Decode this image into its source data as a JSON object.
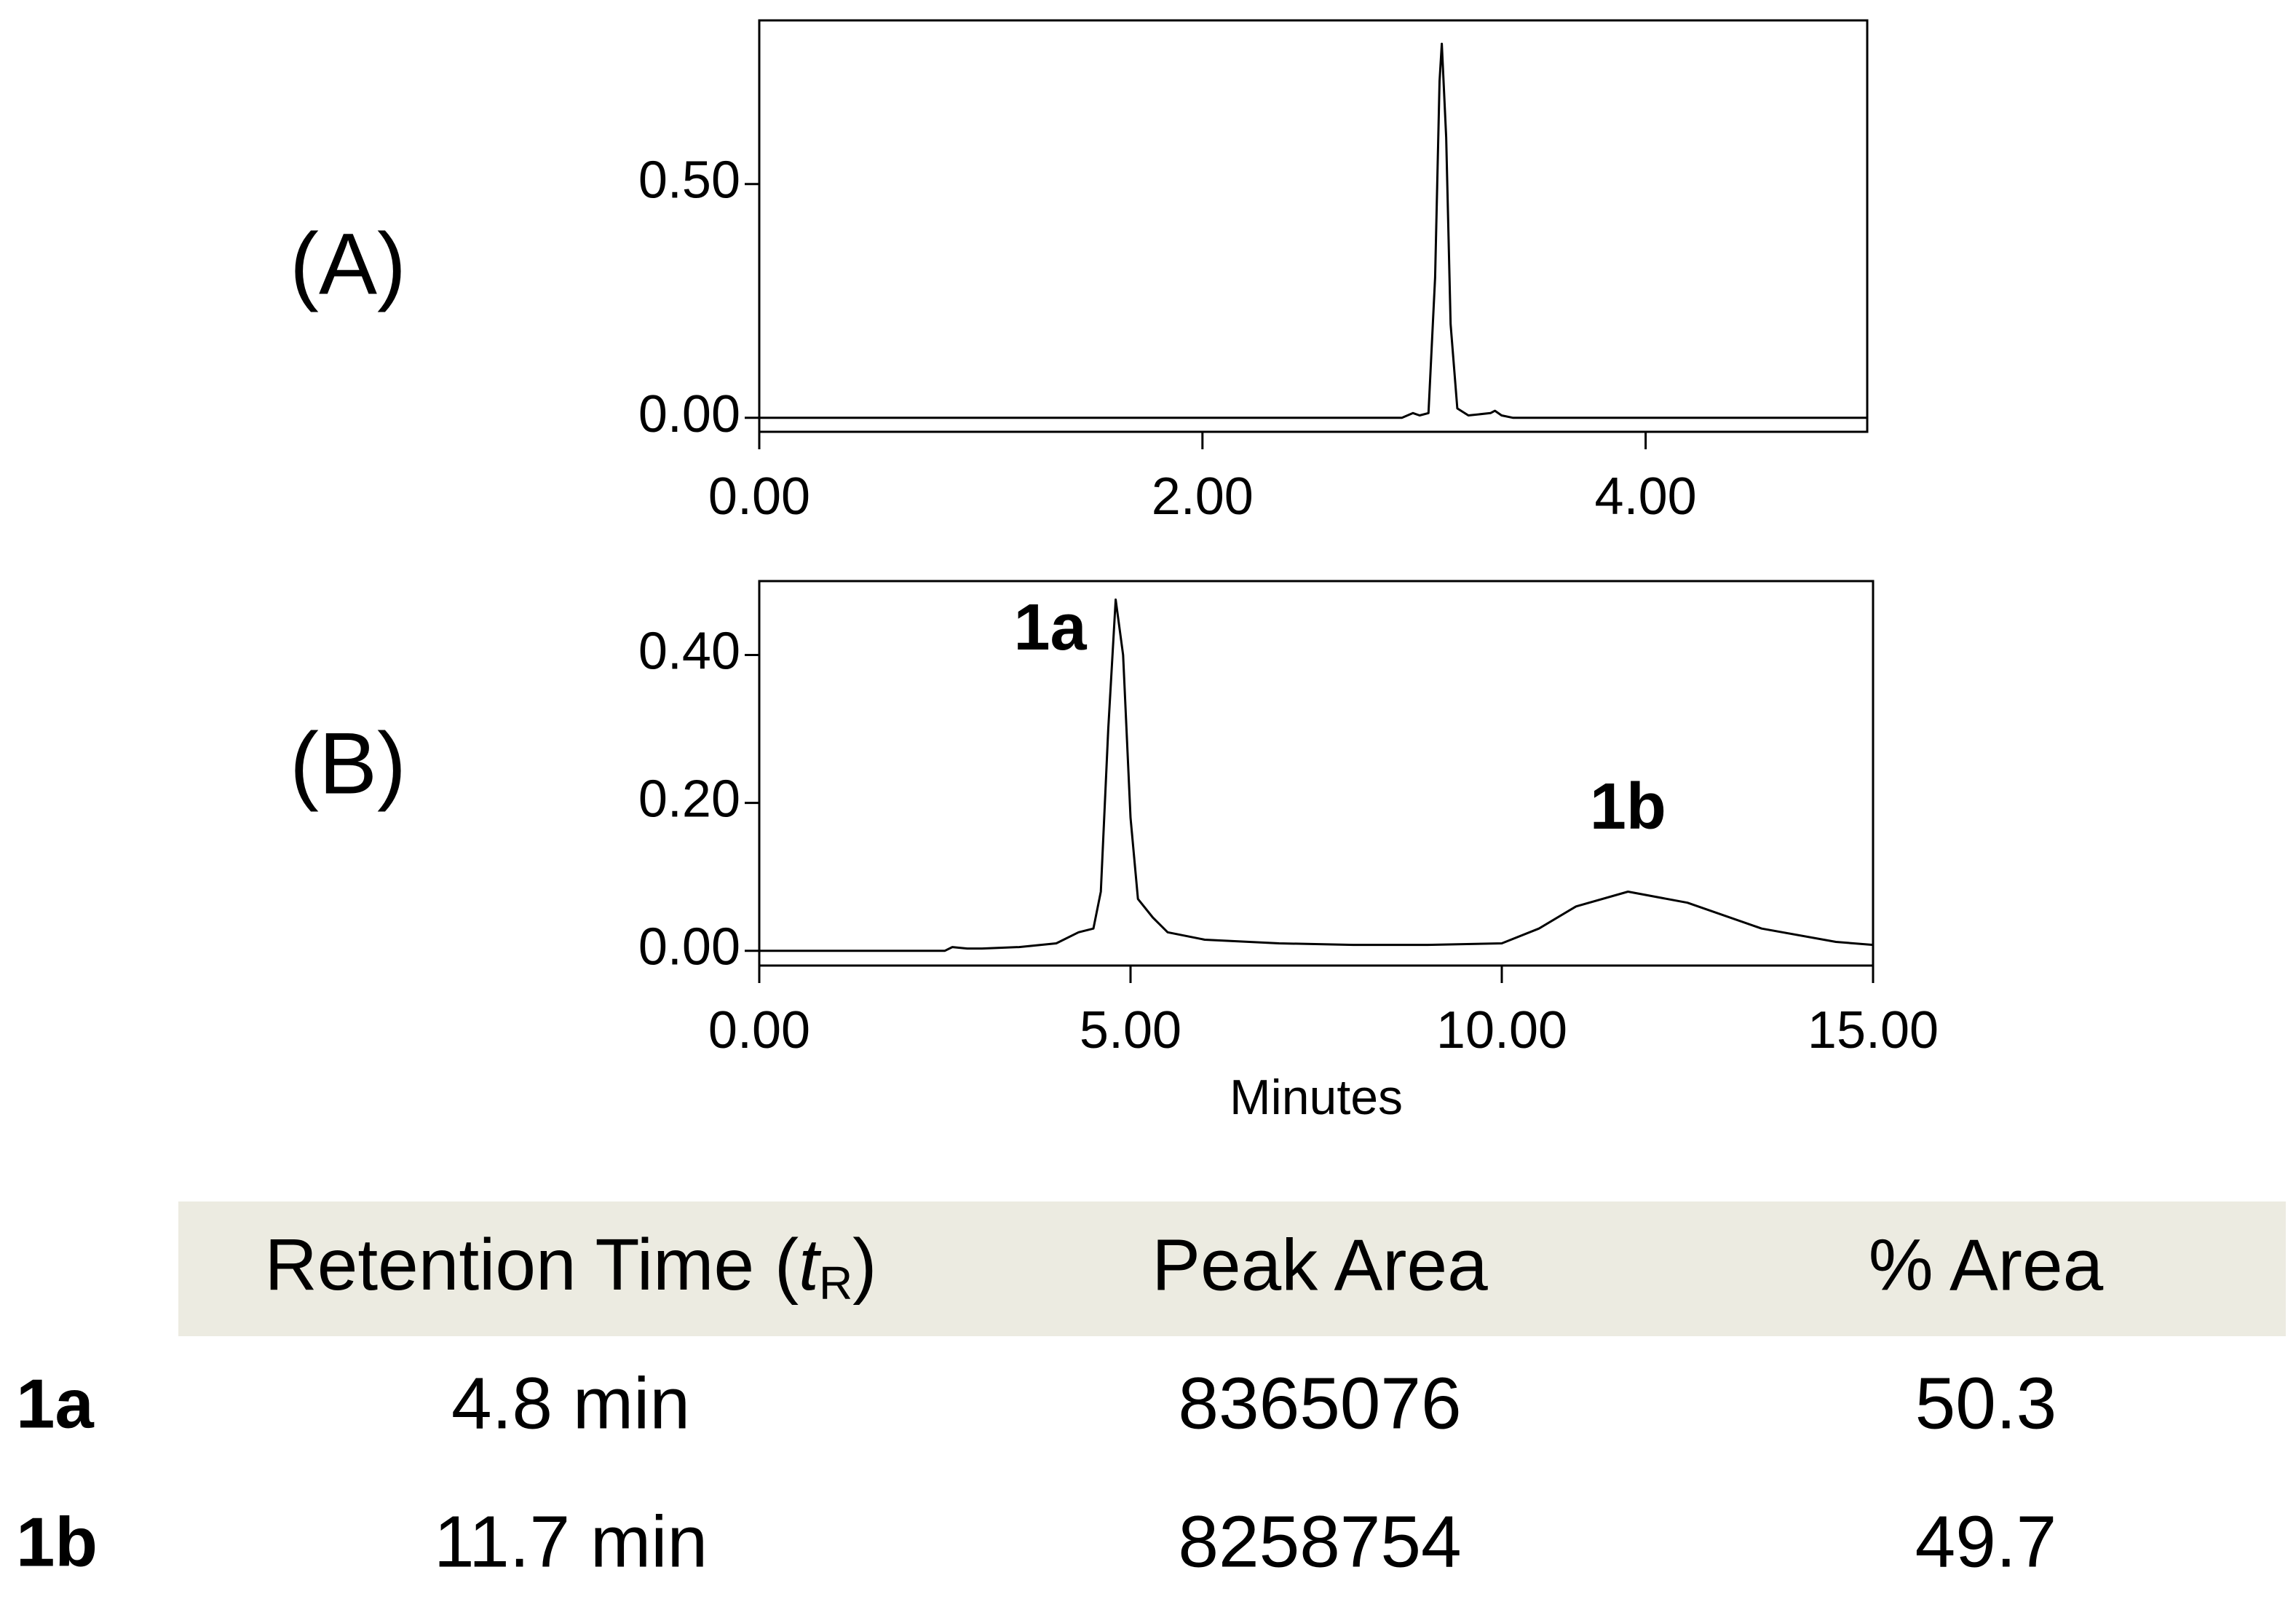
{
  "chart_data": [
    {
      "type": "line",
      "panel_label": "(A)",
      "x": [
        0,
        2.9,
        2.95,
        2.98,
        3.02,
        3.05,
        3.07,
        3.08,
        3.1,
        3.12,
        3.15,
        3.2,
        3.3,
        3.32,
        3.35,
        3.4,
        5
      ],
      "values": [
        0,
        0,
        0.01,
        0.005,
        0.01,
        0.3,
        0.72,
        0.8,
        0.6,
        0.2,
        0.02,
        0.005,
        0.01,
        0.015,
        0.005,
        0,
        0
      ],
      "color": "#000000",
      "xlim": [
        0,
        5
      ],
      "ylim": [
        -0.03,
        0.85
      ],
      "xticks": [
        {
          "value": 0,
          "label": "0.00"
        },
        {
          "value": 2,
          "label": "2.00"
        },
        {
          "value": 4,
          "label": "4.00"
        }
      ],
      "yticks": [
        {
          "value": 0,
          "label": "0.00"
        },
        {
          "value": 0.5,
          "label": "0.50"
        }
      ]
    },
    {
      "type": "line",
      "panel_label": "(B)",
      "xlabel": "Minutes",
      "x": [
        0,
        2.5,
        2.6,
        2.8,
        3,
        3.5,
        4,
        4.3,
        4.5,
        4.6,
        4.7,
        4.8,
        4.9,
        5.0,
        5.1,
        5.3,
        5.5,
        6,
        7,
        8,
        9,
        10,
        10.5,
        11,
        11.7,
        12.5,
        13.5,
        14.5,
        15
      ],
      "values": [
        0,
        0,
        0.005,
        0.003,
        0.003,
        0.005,
        0.01,
        0.025,
        0.03,
        0.08,
        0.3,
        0.475,
        0.4,
        0.18,
        0.07,
        0.045,
        0.025,
        0.015,
        0.01,
        0.008,
        0.008,
        0.01,
        0.03,
        0.06,
        0.08,
        0.065,
        0.03,
        0.012,
        0.008
      ],
      "color": "#000000",
      "xlim": [
        0,
        15
      ],
      "ylim": [
        -0.02,
        0.5
      ],
      "xticks": [
        {
          "value": 0,
          "label": "0.00"
        },
        {
          "value": 5,
          "label": "5.00"
        },
        {
          "value": 10,
          "label": "10.00"
        },
        {
          "value": 15,
          "label": "15.00"
        }
      ],
      "yticks": [
        {
          "value": 0,
          "label": "0.00"
        },
        {
          "value": 0.2,
          "label": "0.20"
        },
        {
          "value": 0.4,
          "label": "0.40"
        }
      ],
      "annotations": [
        {
          "text": "1a",
          "x": 4.8,
          "y": 0.475
        },
        {
          "text": "1b",
          "x": 11.7,
          "y": 0.08
        }
      ]
    }
  ],
  "table": {
    "header": [
      [
        "Retention Time (",
        "t",
        "R",
        ")"
      ],
      "Peak Area",
      "% Area"
    ],
    "rows": [
      [
        "1a",
        "4.8 min",
        "8365076",
        "50.3"
      ],
      [
        "1b",
        "11.7 min",
        "8258754",
        "49.7"
      ]
    ]
  }
}
